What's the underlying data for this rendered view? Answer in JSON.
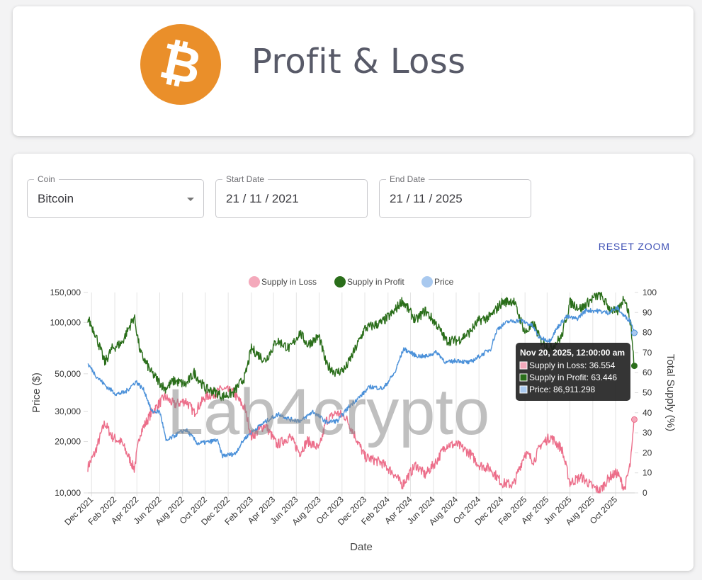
{
  "header": {
    "title": "Profit & Loss",
    "logo_symbol": "₿",
    "logo_color": "#ea8f2a"
  },
  "controls": {
    "coin": {
      "label": "Coin",
      "value": "Bitcoin"
    },
    "start_date": {
      "label": "Start Date",
      "value": "21 / 11 / 2021"
    },
    "end_date": {
      "label": "End Date",
      "value": "21 / 11 / 2025"
    },
    "reset_zoom_label": "RESET ZOOM"
  },
  "watermark": "Lab4crypto",
  "colors": {
    "supply_in_loss": "#ec6e8a",
    "supply_in_profit": "#2a6e1a",
    "price": "#4a90d9",
    "loss_legend": "#f4a9bb",
    "price_legend": "#a9c9ef"
  },
  "chart_data": {
    "type": "line",
    "x_axis_title": "Date",
    "y_left_title": "Price ($)",
    "y_right_title": "Total Supply (%)",
    "y_left_scale": "log",
    "y_left_range": [
      10000,
      150000
    ],
    "y_left_ticks": [
      10000,
      20000,
      30000,
      50000,
      100000,
      150000
    ],
    "y_left_tick_labels": [
      "10,000",
      "20,000",
      "30,000",
      "50,000",
      "100,000",
      "150,000"
    ],
    "y_right_range": [
      0,
      100
    ],
    "y_right_ticks": [
      0,
      10,
      20,
      30,
      40,
      50,
      60,
      70,
      80,
      90,
      100
    ],
    "x_range": [
      "2021-11-21",
      "2025-11-21"
    ],
    "x_ticks": [
      "Dec 2021",
      "Feb 2022",
      "Apr 2022",
      "Jun 2022",
      "Aug 2022",
      "Oct 2022",
      "Dec 2022",
      "Feb 2023",
      "Apr 2023",
      "Jun 2023",
      "Aug 2023",
      "Oct 2023",
      "Dec 2023",
      "Feb 2024",
      "Apr 2024",
      "Jun 2024",
      "Aug 2024",
      "Oct 2024",
      "Dec 2024",
      "Feb 2025",
      "Apr 2025",
      "Jun 2025",
      "Aug 2025",
      "Oct 2025"
    ],
    "x_tick_dates": [
      "2021-12-01",
      "2022-02-01",
      "2022-04-01",
      "2022-06-01",
      "2022-08-01",
      "2022-10-01",
      "2022-12-01",
      "2023-02-01",
      "2023-04-01",
      "2023-06-01",
      "2023-08-01",
      "2023-10-01",
      "2023-12-01",
      "2024-02-01",
      "2024-04-01",
      "2024-06-01",
      "2024-08-01",
      "2024-10-01",
      "2024-12-01",
      "2025-02-01",
      "2025-04-01",
      "2025-06-01",
      "2025-08-01",
      "2025-10-01"
    ],
    "legend": [
      "Supply in Loss",
      "Supply in Profit",
      "Price"
    ],
    "series": [
      {
        "name": "Supply in Profit",
        "axis": "right",
        "x": [
          "2021-11-21",
          "2021-12-10",
          "2022-01-05",
          "2022-01-25",
          "2022-02-20",
          "2022-03-25",
          "2022-04-10",
          "2022-05-10",
          "2022-06-15",
          "2022-07-10",
          "2022-08-10",
          "2022-09-01",
          "2022-10-01",
          "2022-11-01",
          "2022-11-15",
          "2022-12-15",
          "2023-01-15",
          "2023-02-01",
          "2023-03-10",
          "2023-04-10",
          "2023-05-15",
          "2023-06-10",
          "2023-07-01",
          "2023-08-01",
          "2023-08-20",
          "2023-09-15",
          "2023-10-10",
          "2023-11-01",
          "2023-12-01",
          "2024-01-15",
          "2024-02-15",
          "2024-03-10",
          "2024-04-15",
          "2024-05-10",
          "2024-06-10",
          "2024-07-05",
          "2024-08-05",
          "2024-09-05",
          "2024-10-01",
          "2024-11-01",
          "2024-12-01",
          "2025-01-01",
          "2025-02-01",
          "2025-02-25",
          "2025-03-15",
          "2025-04-10",
          "2025-05-10",
          "2025-06-01",
          "2025-07-01",
          "2025-08-01",
          "2025-08-20",
          "2025-09-15",
          "2025-10-05",
          "2025-10-25",
          "2025-11-10",
          "2025-11-20"
        ],
        "values": [
          87,
          80,
          65,
          72,
          75,
          88,
          70,
          60,
          52,
          56,
          54,
          60,
          52,
          50,
          48,
          50,
          58,
          72,
          66,
          76,
          72,
          80,
          74,
          78,
          64,
          60,
          62,
          70,
          82,
          85,
          90,
          96,
          86,
          91,
          84,
          76,
          76,
          80,
          86,
          88,
          95,
          96,
          80,
          84,
          76,
          72,
          78,
          95,
          92,
          97,
          99,
          92,
          90,
          98,
          85,
          63.4
        ]
      },
      {
        "name": "Supply in Loss",
        "axis": "right",
        "x": [
          "2021-11-21",
          "2021-12-10",
          "2022-01-05",
          "2022-01-25",
          "2022-02-20",
          "2022-03-25",
          "2022-04-10",
          "2022-05-10",
          "2022-06-15",
          "2022-07-10",
          "2022-08-10",
          "2022-09-01",
          "2022-10-01",
          "2022-11-01",
          "2022-11-15",
          "2022-12-15",
          "2023-01-15",
          "2023-02-01",
          "2023-03-10",
          "2023-04-10",
          "2023-05-15",
          "2023-06-10",
          "2023-07-01",
          "2023-08-01",
          "2023-08-20",
          "2023-09-15",
          "2023-10-10",
          "2023-11-01",
          "2023-12-01",
          "2024-01-15",
          "2024-02-15",
          "2024-03-10",
          "2024-04-15",
          "2024-05-10",
          "2024-06-10",
          "2024-07-05",
          "2024-08-05",
          "2024-09-05",
          "2024-10-01",
          "2024-11-01",
          "2024-12-01",
          "2025-01-01",
          "2025-02-01",
          "2025-02-25",
          "2025-03-15",
          "2025-04-10",
          "2025-05-10",
          "2025-06-01",
          "2025-07-01",
          "2025-08-01",
          "2025-08-20",
          "2025-09-15",
          "2025-10-05",
          "2025-10-25",
          "2025-11-10",
          "2025-11-20"
        ],
        "values": [
          13,
          20,
          35,
          28,
          25,
          12,
          30,
          40,
          48,
          44,
          46,
          40,
          48,
          50,
          52,
          50,
          42,
          28,
          34,
          24,
          28,
          20,
          26,
          22,
          36,
          40,
          38,
          30,
          18,
          15,
          10,
          4,
          14,
          9,
          16,
          24,
          24,
          20,
          14,
          12,
          5,
          4,
          20,
          16,
          24,
          28,
          22,
          5,
          8,
          3,
          1,
          8,
          10,
          2,
          15,
          36.6
        ]
      },
      {
        "name": "Price",
        "axis": "left",
        "x": [
          "2021-11-21",
          "2021-12-15",
          "2022-01-10",
          "2022-02-05",
          "2022-03-01",
          "2022-03-30",
          "2022-04-20",
          "2022-05-10",
          "2022-06-01",
          "2022-06-18",
          "2022-07-15",
          "2022-08-10",
          "2022-09-10",
          "2022-10-15",
          "2022-11-01",
          "2022-11-15",
          "2022-12-20",
          "2023-01-15",
          "2023-02-15",
          "2023-03-20",
          "2023-04-15",
          "2023-05-15",
          "2023-06-15",
          "2023-07-15",
          "2023-08-20",
          "2023-09-20",
          "2023-10-25",
          "2023-11-20",
          "2023-12-15",
          "2024-01-20",
          "2024-02-20",
          "2024-03-14",
          "2024-04-15",
          "2024-05-10",
          "2024-06-10",
          "2024-07-05",
          "2024-08-05",
          "2024-09-05",
          "2024-10-01",
          "2024-11-01",
          "2024-11-20",
          "2024-12-17",
          "2025-01-20",
          "2025-02-20",
          "2025-03-10",
          "2025-04-08",
          "2025-05-01",
          "2025-05-22",
          "2025-06-20",
          "2025-07-14",
          "2025-08-14",
          "2025-09-10",
          "2025-10-06",
          "2025-10-20",
          "2025-11-10",
          "2025-11-20"
        ],
        "values": [
          57000,
          48000,
          42000,
          38000,
          39000,
          45000,
          40000,
          30000,
          30000,
          20000,
          22000,
          23500,
          19500,
          20000,
          20500,
          16500,
          17000,
          21000,
          24000,
          27000,
          29000,
          27000,
          26500,
          30000,
          26000,
          26500,
          33000,
          37000,
          42000,
          41000,
          51000,
          70000,
          64000,
          63000,
          67000,
          58000,
          60000,
          58000,
          63000,
          70000,
          92000,
          101000,
          103000,
          96000,
          82000,
          78000,
          95000,
          108000,
          105000,
          118000,
          117000,
          114000,
          122000,
          111000,
          102000,
          86911
        ]
      }
    ],
    "tooltip": {
      "title": "Nov 20, 2025, 12:00:00 am",
      "rows": [
        "Supply in Loss: 36.554",
        "Supply in Profit: 63.446",
        "Price: 86,911.298"
      ]
    }
  }
}
